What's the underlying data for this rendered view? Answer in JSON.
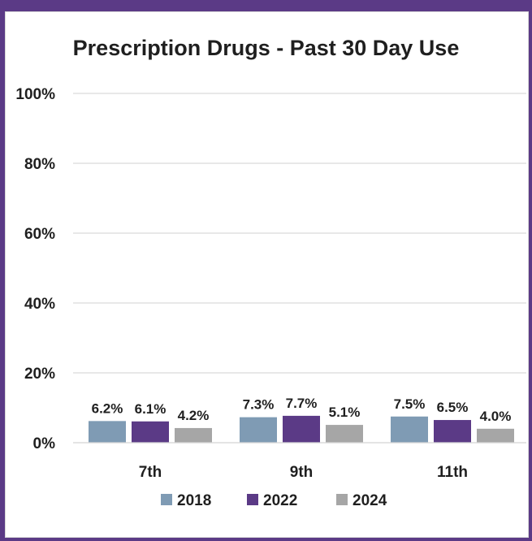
{
  "chart_data": {
    "type": "bar",
    "title": "Prescription Drugs - Past 30 Day Use",
    "categories": [
      "7th",
      "9th",
      "11th"
    ],
    "series": [
      {
        "name": "2018",
        "values": [
          6.2,
          7.3,
          7.5
        ],
        "labels": [
          "6.2%",
          "7.3%",
          "7.5%"
        ],
        "color": "#7f9bb4"
      },
      {
        "name": "2022",
        "values": [
          6.1,
          7.7,
          6.5
        ],
        "labels": [
          "6.1%",
          "7.7%",
          "6.5%"
        ],
        "color": "#5b3a86"
      },
      {
        "name": "2024",
        "values": [
          4.2,
          5.1,
          4.0
        ],
        "labels": [
          "4.2%",
          "5.1%",
          "4.0%"
        ],
        "color": "#a6a6a6"
      }
    ],
    "yticks": [
      "0%",
      "20%",
      "40%",
      "60%",
      "80%",
      "100%"
    ],
    "ylim": [
      0,
      100
    ],
    "grid": true,
    "legend": "bottom"
  }
}
